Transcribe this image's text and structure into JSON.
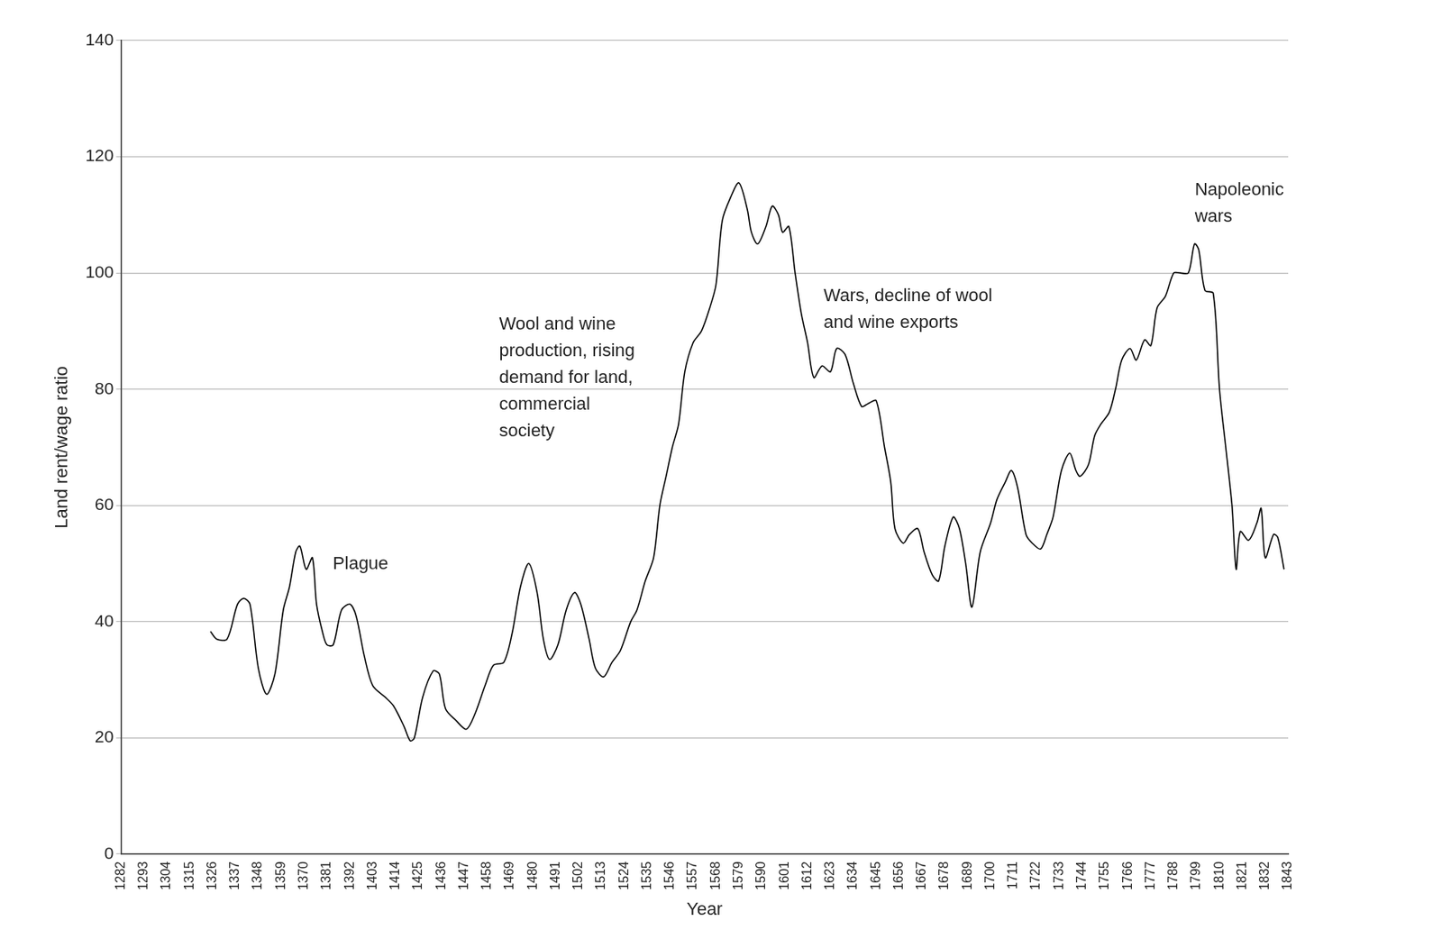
{
  "chart_data": {
    "type": "line",
    "x_label": "Year",
    "y_label": "Land rent/wage ratio",
    "x": [
      1325,
      1328,
      1333,
      1338,
      1341,
      1344,
      1348,
      1352,
      1356,
      1360,
      1363,
      1366,
      1368,
      1371,
      1374,
      1376,
      1379,
      1381,
      1384,
      1388,
      1392,
      1395,
      1399,
      1403,
      1409,
      1413,
      1418,
      1421,
      1423,
      1427,
      1432,
      1435,
      1438,
      1443,
      1448,
      1452,
      1457,
      1461,
      1466,
      1470,
      1474,
      1478,
      1482,
      1485,
      1488,
      1492,
      1496,
      1500,
      1503,
      1507,
      1510,
      1514,
      1518,
      1522,
      1527,
      1530,
      1534,
      1538,
      1541,
      1544,
      1547,
      1550,
      1553,
      1557,
      1561,
      1565,
      1568,
      1571,
      1575,
      1579,
      1583,
      1585,
      1588,
      1592,
      1595,
      1598,
      1600,
      1603,
      1606,
      1609,
      1612,
      1615,
      1619,
      1623,
      1626,
      1630,
      1634,
      1638,
      1641,
      1645,
      1649,
      1652,
      1654,
      1658,
      1661,
      1665,
      1668,
      1672,
      1675,
      1678,
      1682,
      1685,
      1688,
      1691,
      1695,
      1700,
      1703,
      1707,
      1710,
      1713,
      1717,
      1720,
      1724,
      1727,
      1730,
      1734,
      1738,
      1741,
      1743,
      1747,
      1750,
      1753,
      1757,
      1760,
      1763,
      1767,
      1770,
      1774,
      1777,
      1780,
      1784,
      1788,
      1791,
      1795,
      1798,
      1800,
      1803,
      1807,
      1810,
      1813,
      1816,
      1818,
      1820,
      1824,
      1828,
      1830,
      1832,
      1836,
      1838,
      1841
    ],
    "values": [
      38.3,
      37,
      37,
      43,
      44,
      43,
      32,
      27.5,
      31,
      42,
      46,
      52,
      53,
      49,
      51,
      43,
      38,
      36,
      36,
      42,
      43,
      41,
      34,
      29,
      27,
      25.5,
      22,
      19.5,
      20,
      27,
      31.5,
      31,
      25,
      23,
      21.5,
      24,
      29,
      32.5,
      33,
      38,
      46,
      50,
      45,
      37,
      33.5,
      36,
      42,
      45,
      43,
      37,
      32,
      30.5,
      33,
      35,
      40,
      42,
      47,
      51,
      60,
      65,
      70,
      74,
      83,
      88,
      90,
      94,
      98,
      109,
      113,
      115.5,
      111,
      107,
      105,
      108,
      111.5,
      110,
      107,
      108,
      100,
      93,
      88,
      82,
      84,
      83,
      87,
      86,
      81,
      77,
      77.5,
      78,
      70,
      64,
      56,
      53.5,
      55,
      56,
      52,
      48,
      47,
      53,
      58,
      56,
      50,
      42.5,
      52,
      57,
      61,
      64,
      66,
      63,
      55,
      53.5,
      52.5,
      55,
      58,
      66,
      69,
      66,
      65,
      67,
      72,
      74,
      76,
      80,
      85,
      87,
      85,
      88.5,
      87.5,
      94,
      96,
      100,
      100,
      100,
      105,
      104,
      97,
      96.5,
      80,
      70,
      60,
      49,
      55.5,
      54,
      57,
      59.5,
      51,
      55,
      54.5,
      49
    ],
    "color": "#000000",
    "xlim": [
      1282,
      1843
    ],
    "xticks": [
      1282,
      1293,
      1304,
      1315,
      1326,
      1337,
      1348,
      1359,
      1370,
      1381,
      1392,
      1403,
      1414,
      1425,
      1436,
      1447,
      1458,
      1469,
      1480,
      1491,
      1502,
      1513,
      1524,
      1535,
      1546,
      1557,
      1568,
      1579,
      1590,
      1601,
      1612,
      1623,
      1634,
      1645,
      1656,
      1667,
      1678,
      1689,
      1700,
      1711,
      1722,
      1733,
      1744,
      1755,
      1766,
      1777,
      1788,
      1799,
      1810,
      1821,
      1832,
      1843
    ],
    "ylim": [
      0,
      140
    ],
    "yticks": [
      0,
      20,
      40,
      60,
      80,
      100,
      120,
      140
    ],
    "grid": "y",
    "annotations": [
      {
        "text": [
          "Plague"
        ]
      },
      {
        "text": [
          "Wool and wine",
          "production, rising",
          "demand for land,",
          "commercial",
          "society"
        ]
      },
      {
        "text": [
          "Wars, decline of wool",
          "and wine exports"
        ]
      },
      {
        "text": [
          "Napoleonic",
          "wars"
        ]
      }
    ]
  }
}
